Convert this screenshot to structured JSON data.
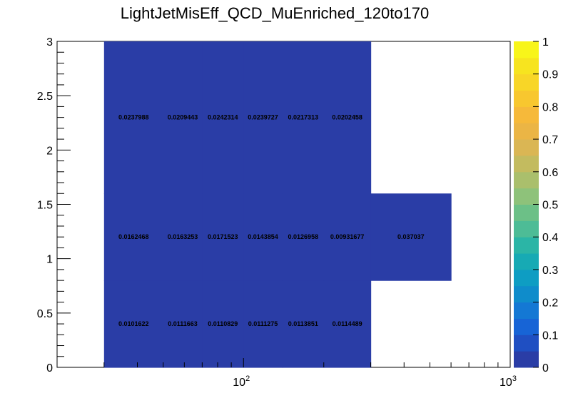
{
  "chart_data": {
    "type": "heatmap",
    "title": "LightJetMisEff_QCD_MuEnriched_120to170",
    "x_scale": "log",
    "xlim": [
      20,
      1000
    ],
    "ylim": [
      0,
      3
    ],
    "x_ticks": [
      {
        "value": 100,
        "base": "10",
        "exp": "2"
      },
      {
        "value": 1000,
        "base": "10",
        "exp": "3"
      }
    ],
    "y_ticks": [
      {
        "value": 0,
        "label": "0"
      },
      {
        "value": 0.5,
        "label": "0.5"
      },
      {
        "value": 1,
        "label": "1"
      },
      {
        "value": 1.5,
        "label": "1.5"
      },
      {
        "value": 2,
        "label": "2"
      },
      {
        "value": 2.5,
        "label": "2.5"
      },
      {
        "value": 3,
        "label": "3"
      }
    ],
    "fill_color": "#2a3da6",
    "cells": [
      {
        "x": [
          30,
          50
        ],
        "y": [
          0,
          0.8
        ],
        "value": 0.0101622,
        "label": "0.0101622"
      },
      {
        "x": [
          50,
          70
        ],
        "y": [
          0,
          0.8
        ],
        "value": 0.0111663,
        "label": "0.0111663"
      },
      {
        "x": [
          70,
          100
        ],
        "y": [
          0,
          0.8
        ],
        "value": 0.0110829,
        "label": "0.0110829"
      },
      {
        "x": [
          100,
          140
        ],
        "y": [
          0,
          0.8
        ],
        "value": 0.0111275,
        "label": "0.0111275"
      },
      {
        "x": [
          140,
          200
        ],
        "y": [
          0,
          0.8
        ],
        "value": 0.0113851,
        "label": "0.0113851"
      },
      {
        "x": [
          200,
          300
        ],
        "y": [
          0,
          0.8
        ],
        "value": 0.0114489,
        "label": "0.0114489"
      },
      {
        "x": [
          30,
          50
        ],
        "y": [
          0.8,
          1.6
        ],
        "value": 0.0162468,
        "label": "0.0162468"
      },
      {
        "x": [
          50,
          70
        ],
        "y": [
          0.8,
          1.6
        ],
        "value": 0.0163253,
        "label": "0.0163253"
      },
      {
        "x": [
          70,
          100
        ],
        "y": [
          0.8,
          1.6
        ],
        "value": 0.0171523,
        "label": "0.0171523"
      },
      {
        "x": [
          100,
          140
        ],
        "y": [
          0.8,
          1.6
        ],
        "value": 0.0143854,
        "label": "0.0143854"
      },
      {
        "x": [
          140,
          200
        ],
        "y": [
          0.8,
          1.6
        ],
        "value": 0.0126958,
        "label": "0.0126958"
      },
      {
        "x": [
          200,
          300
        ],
        "y": [
          0.8,
          1.6
        ],
        "value": 0.00931677,
        "label": "0.00931677"
      },
      {
        "x": [
          300,
          600
        ],
        "y": [
          0.8,
          1.6
        ],
        "value": 0.037037,
        "label": "0.037037"
      },
      {
        "x": [
          30,
          50
        ],
        "y": [
          1.6,
          3.0
        ],
        "value": 0.0237988,
        "label": "0.0237988"
      },
      {
        "x": [
          50,
          70
        ],
        "y": [
          1.6,
          3.0
        ],
        "value": 0.0209443,
        "label": "0.0209443"
      },
      {
        "x": [
          70,
          100
        ],
        "y": [
          1.6,
          3.0
        ],
        "value": 0.0242314,
        "label": "0.0242314"
      },
      {
        "x": [
          100,
          140
        ],
        "y": [
          1.6,
          3.0
        ],
        "value": 0.0239727,
        "label": "0.0239727"
      },
      {
        "x": [
          140,
          200
        ],
        "y": [
          1.6,
          3.0
        ],
        "value": 0.0217313,
        "label": "0.0217313"
      },
      {
        "x": [
          200,
          300
        ],
        "y": [
          1.6,
          3.0
        ],
        "value": 0.0202458,
        "label": "0.0202458"
      }
    ],
    "colorbar": {
      "range": [
        0,
        1
      ],
      "tick_labels": [
        "0",
        "0.1",
        "0.2",
        "0.3",
        "0.4",
        "0.5",
        "0.6",
        "0.7",
        "0.8",
        "0.9",
        "1"
      ],
      "colors": [
        "#2a3da6",
        "#1f4fc2",
        "#1764d6",
        "#1478d4",
        "#0f8ccb",
        "#0e9dc3",
        "#17aab4",
        "#2bb5a6",
        "#4dbc96",
        "#6cc087",
        "#8ec27a",
        "#aabf6c",
        "#c3bb5f",
        "#dab654",
        "#ebb545",
        "#f6b93a",
        "#f8c72f",
        "#f8d627",
        "#f7e41f",
        "#f8f51a"
      ]
    }
  }
}
